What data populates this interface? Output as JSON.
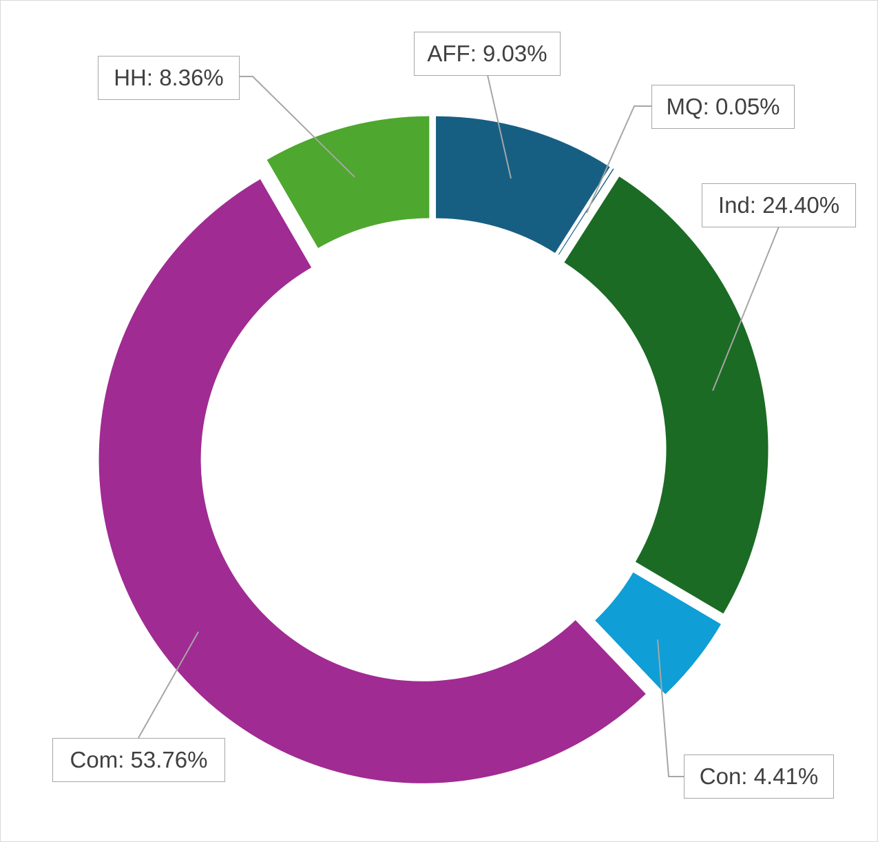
{
  "chart_data": {
    "type": "pie",
    "variant": "donut",
    "title": "",
    "legend": "none",
    "label_format": "{category}: {value}%",
    "categories": [
      "AFF",
      "MQ",
      "Ind",
      "Con",
      "Com",
      "HH"
    ],
    "values": [
      9.03,
      0.05,
      24.4,
      4.41,
      53.76,
      8.36
    ],
    "labels": [
      "AFF: 9.03%",
      "MQ: 0.05%",
      "Ind: 24.40%",
      "Con: 4.41%",
      "Com: 53.76%",
      "HH: 8.36%"
    ],
    "colors": [
      "#175f82",
      "#175f82",
      "#1b6b24",
      "#0f9ed5",
      "#a02b93",
      "#4ea72e"
    ],
    "exploded": true,
    "direction": "clockwise",
    "start": "top"
  }
}
